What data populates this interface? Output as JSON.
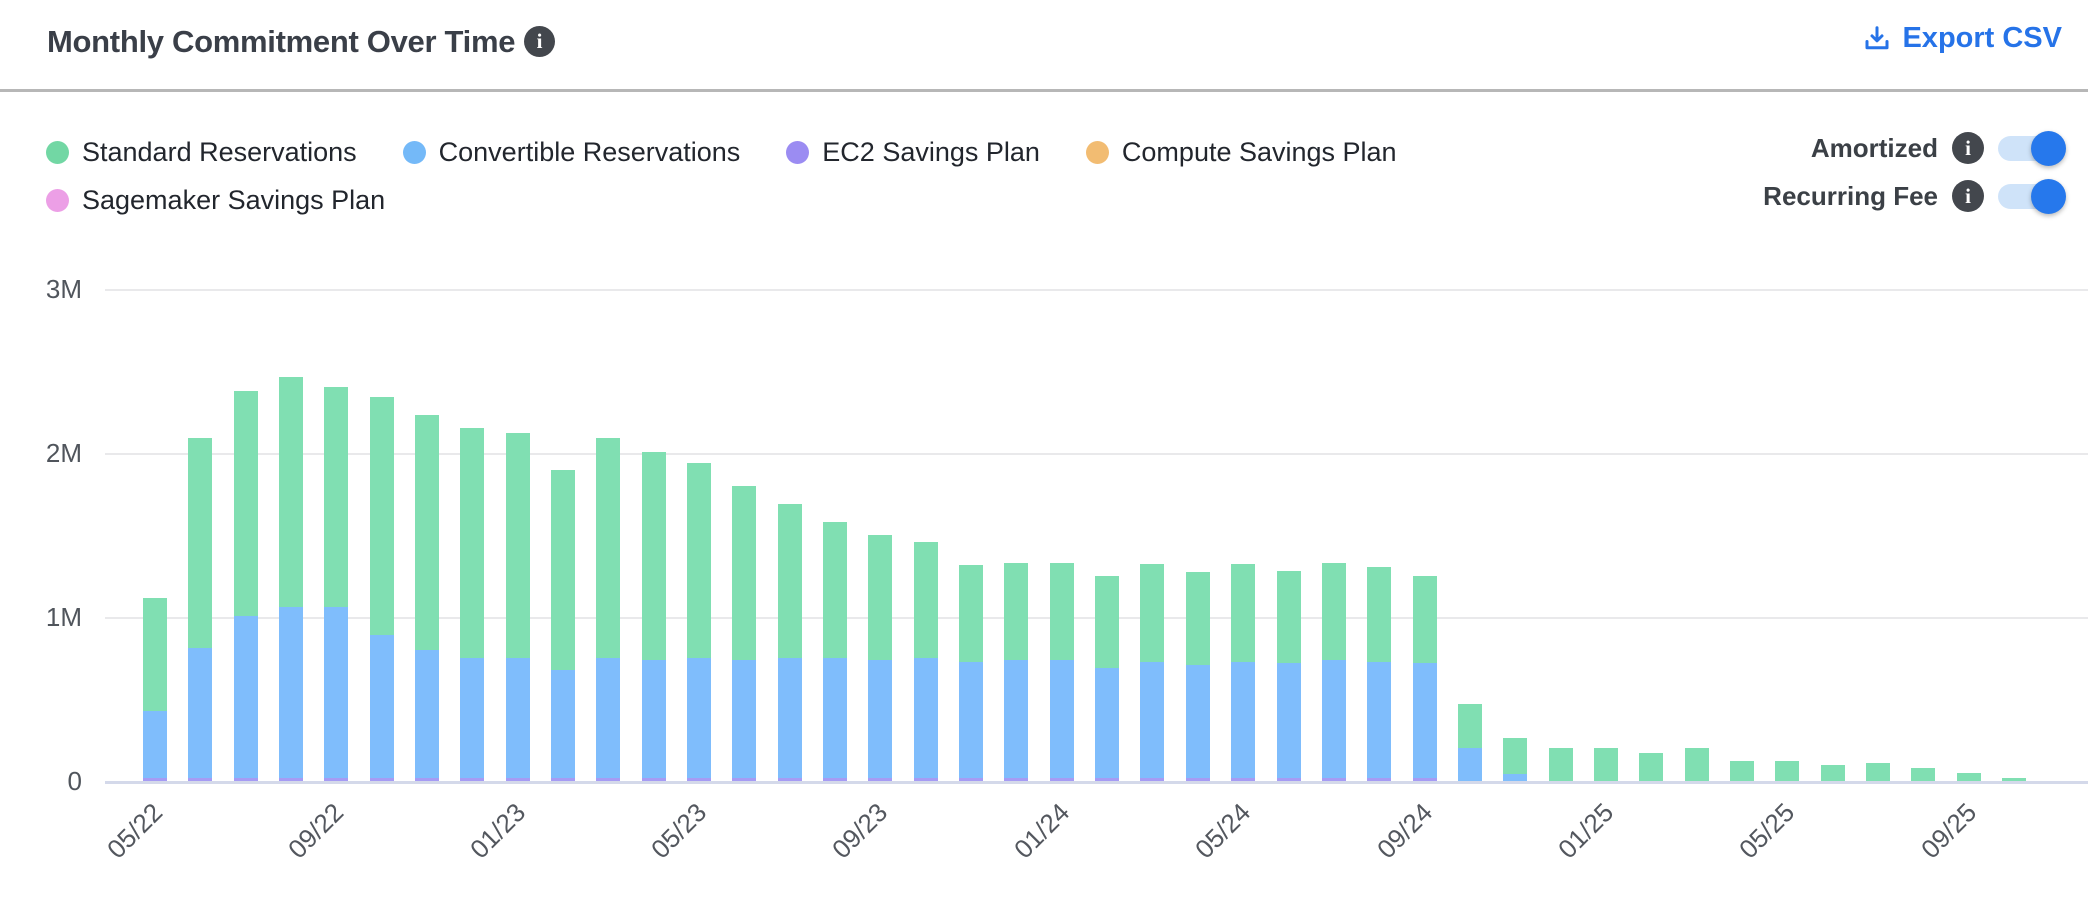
{
  "header": {
    "title": "Monthly Commitment Over Time",
    "export_label": "Export CSV"
  },
  "legend": {
    "items": [
      {
        "label": "Standard Reservations",
        "color": "#72d7a4"
      },
      {
        "label": "Convertible Reservations",
        "color": "#74b9f8"
      },
      {
        "label": "EC2 Savings Plan",
        "color": "#9b8cf2"
      },
      {
        "label": "Compute Savings Plan",
        "color": "#f2bc72"
      },
      {
        "label": "Sagemaker Savings Plan",
        "color": "#ec9fe6"
      }
    ]
  },
  "toggles": [
    {
      "label": "Amortized",
      "state": "on"
    },
    {
      "label": "Recurring Fee",
      "state": "on"
    }
  ],
  "colors": {
    "accent_blue": "#2673e8",
    "toggle_track": "#cfe3f9",
    "toggle_knob": "#2678ec",
    "info_badge": "#43474d",
    "gridline": "#e9e9eb",
    "axis_baseline": "#d4d9ea",
    "axis_text": "#53575e",
    "title_text": "#3a3f48"
  },
  "chart_data": {
    "type": "bar",
    "stacked": true,
    "title": "Monthly Commitment Over Time",
    "xlabel": "",
    "ylabel": "",
    "unit": "M",
    "ylim": [
      0,
      3
    ],
    "grid": "horizontal",
    "legend_position": "top-left",
    "x_tick_every": 4,
    "y_ticks": [
      {
        "label": "0",
        "value": 0
      },
      {
        "label": "1M",
        "value": 1
      },
      {
        "label": "2M",
        "value": 2
      },
      {
        "label": "3M",
        "value": 3
      }
    ],
    "x": [
      "05/22",
      "06/22",
      "07/22",
      "08/22",
      "09/22",
      "10/22",
      "11/22",
      "12/22",
      "01/23",
      "02/23",
      "03/23",
      "04/23",
      "05/23",
      "06/23",
      "07/23",
      "08/23",
      "09/23",
      "10/23",
      "11/23",
      "12/23",
      "01/24",
      "02/24",
      "03/24",
      "04/24",
      "05/24",
      "06/24",
      "07/24",
      "08/24",
      "09/24",
      "10/24",
      "11/24",
      "12/24",
      "01/25",
      "02/25",
      "03/25",
      "04/25",
      "05/25",
      "06/25",
      "07/25",
      "08/25",
      "09/25",
      "10/25"
    ],
    "series": [
      {
        "name": "Standard Reservations",
        "color": "#80dfb2",
        "values": [
          0.69,
          1.28,
          1.37,
          1.4,
          1.34,
          1.45,
          1.43,
          1.4,
          1.37,
          1.22,
          1.34,
          1.27,
          1.19,
          1.06,
          0.94,
          0.83,
          0.76,
          0.71,
          0.59,
          0.59,
          0.59,
          0.56,
          0.6,
          0.57,
          0.6,
          0.56,
          0.59,
          0.58,
          0.53,
          0.27,
          0.22,
          0.2,
          0.2,
          0.17,
          0.2,
          0.12,
          0.12,
          0.1,
          0.11,
          0.08,
          0.05,
          0.02
        ]
      },
      {
        "name": "Convertible Reservations",
        "color": "#7fbdfc",
        "values": [
          0.41,
          0.79,
          0.99,
          1.04,
          1.04,
          0.87,
          0.78,
          0.73,
          0.73,
          0.66,
          0.73,
          0.72,
          0.73,
          0.72,
          0.73,
          0.73,
          0.72,
          0.73,
          0.71,
          0.72,
          0.72,
          0.67,
          0.71,
          0.69,
          0.71,
          0.7,
          0.72,
          0.71,
          0.7,
          0.2,
          0.04,
          0,
          0,
          0,
          0,
          0,
          0,
          0,
          0,
          0,
          0,
          0
        ]
      },
      {
        "name": "EC2 Savings Plan",
        "color": "#a69bf4",
        "values": [
          0.02,
          0.02,
          0.02,
          0.02,
          0.02,
          0.02,
          0.02,
          0.02,
          0.02,
          0.02,
          0.02,
          0.02,
          0.02,
          0.02,
          0.02,
          0.02,
          0.02,
          0.02,
          0.02,
          0.02,
          0.02,
          0.02,
          0.02,
          0.02,
          0.02,
          0.02,
          0.02,
          0.02,
          0.02,
          0,
          0,
          0,
          0,
          0,
          0,
          0,
          0,
          0,
          0,
          0,
          0,
          0
        ]
      },
      {
        "name": "Compute Savings Plan",
        "color": "#f2bc72",
        "values": [
          0,
          0,
          0,
          0,
          0,
          0,
          0,
          0,
          0,
          0,
          0,
          0,
          0,
          0,
          0,
          0,
          0,
          0,
          0,
          0,
          0,
          0,
          0,
          0,
          0,
          0,
          0,
          0,
          0,
          0,
          0,
          0,
          0,
          0,
          0,
          0,
          0,
          0,
          0,
          0,
          0,
          0
        ]
      },
      {
        "name": "Sagemaker Savings Plan",
        "color": "#ec9fe6",
        "values": [
          0,
          0,
          0,
          0,
          0,
          0,
          0,
          0,
          0,
          0,
          0,
          0,
          0,
          0,
          0,
          0,
          0,
          0,
          0,
          0,
          0,
          0,
          0,
          0,
          0,
          0,
          0,
          0,
          0,
          0,
          0,
          0,
          0,
          0,
          0,
          0,
          0,
          0,
          0,
          0,
          0,
          0
        ]
      }
    ]
  }
}
